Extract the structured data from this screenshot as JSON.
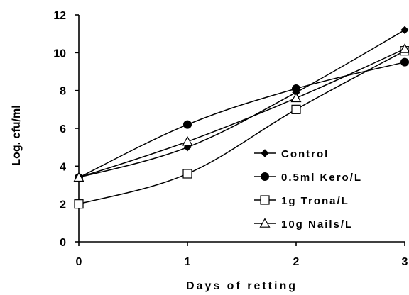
{
  "chart_data": {
    "type": "line",
    "title": "",
    "xlabel": "Days of retting",
    "ylabel": "Log. cfu/ml",
    "x": [
      0,
      1,
      2,
      3
    ],
    "xlim": [
      0,
      3
    ],
    "ylim": [
      0,
      12
    ],
    "xticks": [
      "0",
      "1",
      "2",
      "3"
    ],
    "yticks": [
      "0",
      "2",
      "4",
      "6",
      "8",
      "10",
      "12"
    ],
    "grid": false,
    "legend_position": "right",
    "series": [
      {
        "name": "Control",
        "marker": "diamond-filled",
        "color": "#000000",
        "values": [
          3.4,
          5.0,
          7.9,
          11.2
        ]
      },
      {
        "name": "0.5ml Kero/L",
        "marker": "circle-filled",
        "color": "#000000",
        "values": [
          3.4,
          6.2,
          8.1,
          9.5
        ]
      },
      {
        "name": "1g Trona/L",
        "marker": "square-open",
        "color": "#000000",
        "values": [
          2.0,
          3.6,
          7.0,
          10.1
        ]
      },
      {
        "name": "10g Nails/L",
        "marker": "triangle-open",
        "color": "#000000",
        "values": [
          3.4,
          5.3,
          7.6,
          10.2
        ]
      }
    ]
  }
}
